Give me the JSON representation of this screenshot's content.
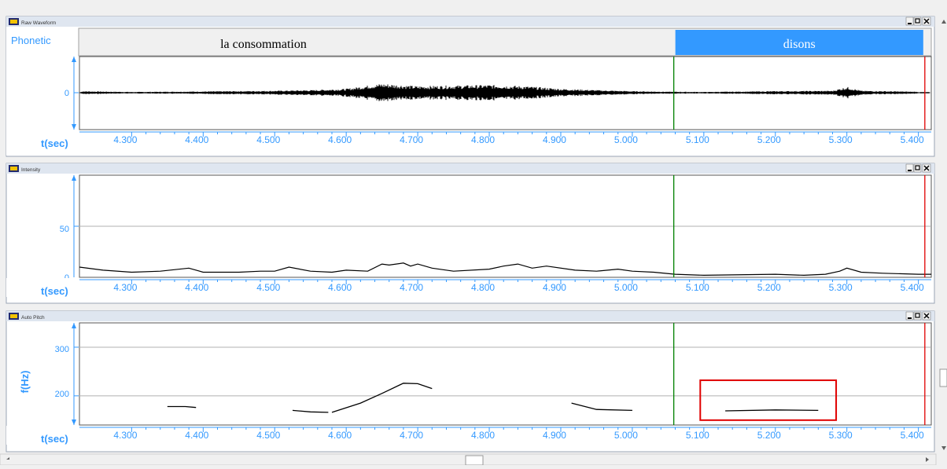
{
  "colors": {
    "accent": "#3399ff",
    "selection": "#3399ff",
    "cursor_start": "#008000",
    "cursor_end": "#e00000",
    "highlight_box": "#e00000",
    "trace": "#000000",
    "titlebar": "#dfe6f0"
  },
  "time_axis": {
    "label": "t(sec)",
    "range": [
      4.227,
      5.418
    ],
    "ticks": [
      4.3,
      4.4,
      4.5,
      4.6,
      4.7,
      4.8,
      4.9,
      5.0,
      5.1,
      5.2,
      5.3,
      5.4
    ],
    "tick_labels": [
      "4.300",
      "4.400",
      "4.500",
      "4.600",
      "4.700",
      "4.800",
      "4.900",
      "5.000",
      "5.100",
      "5.200",
      "5.300",
      "5.400"
    ]
  },
  "cursors": {
    "start_time": 5.058,
    "end_time": 5.409
  },
  "panels": {
    "waveform": {
      "title": "Raw Waveform",
      "phonetic_label": "Phonetic",
      "segments": [
        {
          "text": "la consommation",
          "selected": false
        },
        {
          "text": "disons",
          "selected": true
        }
      ],
      "y_tick": "0"
    },
    "intensity": {
      "title": "Intensity",
      "y_ticks": [
        "50",
        "0"
      ],
      "ylim": [
        0,
        100
      ]
    },
    "pitch": {
      "title": "Auto Pitch",
      "y_label": "f(Hz)",
      "y_ticks": [
        "300",
        "200"
      ],
      "ylim": [
        140,
        350
      ]
    }
  },
  "window_controls": {
    "minimize": "minimize",
    "maximize": "maximize",
    "close": "close"
  },
  "chart_data": [
    {
      "type": "line",
      "title": "Raw Waveform",
      "xlabel": "t(sec)",
      "xlim": [
        4.227,
        5.418
      ],
      "ylim": [
        -1,
        1
      ],
      "series": [
        {
          "x": [
            4.23,
            4.3,
            4.4,
            4.5,
            4.55,
            4.6,
            4.63,
            4.65,
            4.7,
            4.75,
            4.8,
            4.85,
            4.9,
            4.95,
            5.0,
            5.05,
            5.1,
            5.2,
            5.28,
            5.3,
            5.32,
            5.4
          ],
          "amp": [
            0.12,
            0.06,
            0.1,
            0.15,
            0.2,
            0.3,
            0.55,
            0.7,
            0.5,
            0.55,
            0.6,
            0.5,
            0.3,
            0.2,
            0.12,
            0.08,
            0.06,
            0.12,
            0.15,
            0.45,
            0.15,
            0.08
          ]
        }
      ]
    },
    {
      "type": "line",
      "title": "Intensity",
      "xlabel": "t(sec)",
      "ylim": [
        0,
        100
      ],
      "series": [
        {
          "x": [
            4.227,
            4.26,
            4.3,
            4.34,
            4.38,
            4.4,
            4.45,
            4.48,
            4.5,
            4.52,
            4.55,
            4.58,
            4.6,
            4.63,
            4.65,
            4.66,
            4.68,
            4.69,
            4.7,
            4.72,
            4.75,
            4.8,
            4.82,
            4.84,
            4.86,
            4.88,
            4.92,
            4.95,
            4.98,
            5.0,
            5.03,
            5.06,
            5.1,
            5.2,
            5.24,
            5.27,
            5.29,
            5.3,
            5.32,
            5.35,
            5.4,
            5.418
          ],
          "y": [
            10,
            7,
            5,
            6,
            9,
            5,
            5,
            6,
            6,
            10,
            6,
            5,
            7,
            6,
            13,
            12,
            14,
            11,
            13,
            9,
            6,
            8,
            11,
            13,
            9,
            11,
            7,
            6,
            8,
            6,
            5,
            3,
            2,
            3,
            2,
            3,
            6,
            9,
            5,
            4,
            3,
            3
          ]
        }
      ]
    },
    {
      "type": "line",
      "title": "Auto Pitch",
      "xlabel": "t(sec)",
      "ylabel": "f(Hz)",
      "ylim": [
        140,
        350
      ],
      "series": [
        {
          "x": [
            4.35,
            4.375,
            4.39
          ],
          "y": [
            178,
            178,
            176
          ]
        },
        {
          "x": [
            4.525,
            4.55,
            4.575
          ],
          "y": [
            170,
            167,
            166
          ]
        },
        {
          "x": [
            4.58,
            4.62,
            4.65,
            4.68,
            4.7,
            4.72
          ],
          "y": [
            166,
            185,
            205,
            226,
            225,
            215
          ]
        },
        {
          "x": [
            4.915,
            4.95,
            5.0
          ],
          "y": [
            185,
            172,
            170
          ]
        },
        {
          "x": [
            5.13,
            5.2,
            5.26
          ],
          "y": [
            169,
            171,
            170
          ]
        }
      ],
      "highlight": {
        "x": [
          5.095,
          5.285
        ],
        "y": [
          150,
          232
        ]
      }
    }
  ]
}
